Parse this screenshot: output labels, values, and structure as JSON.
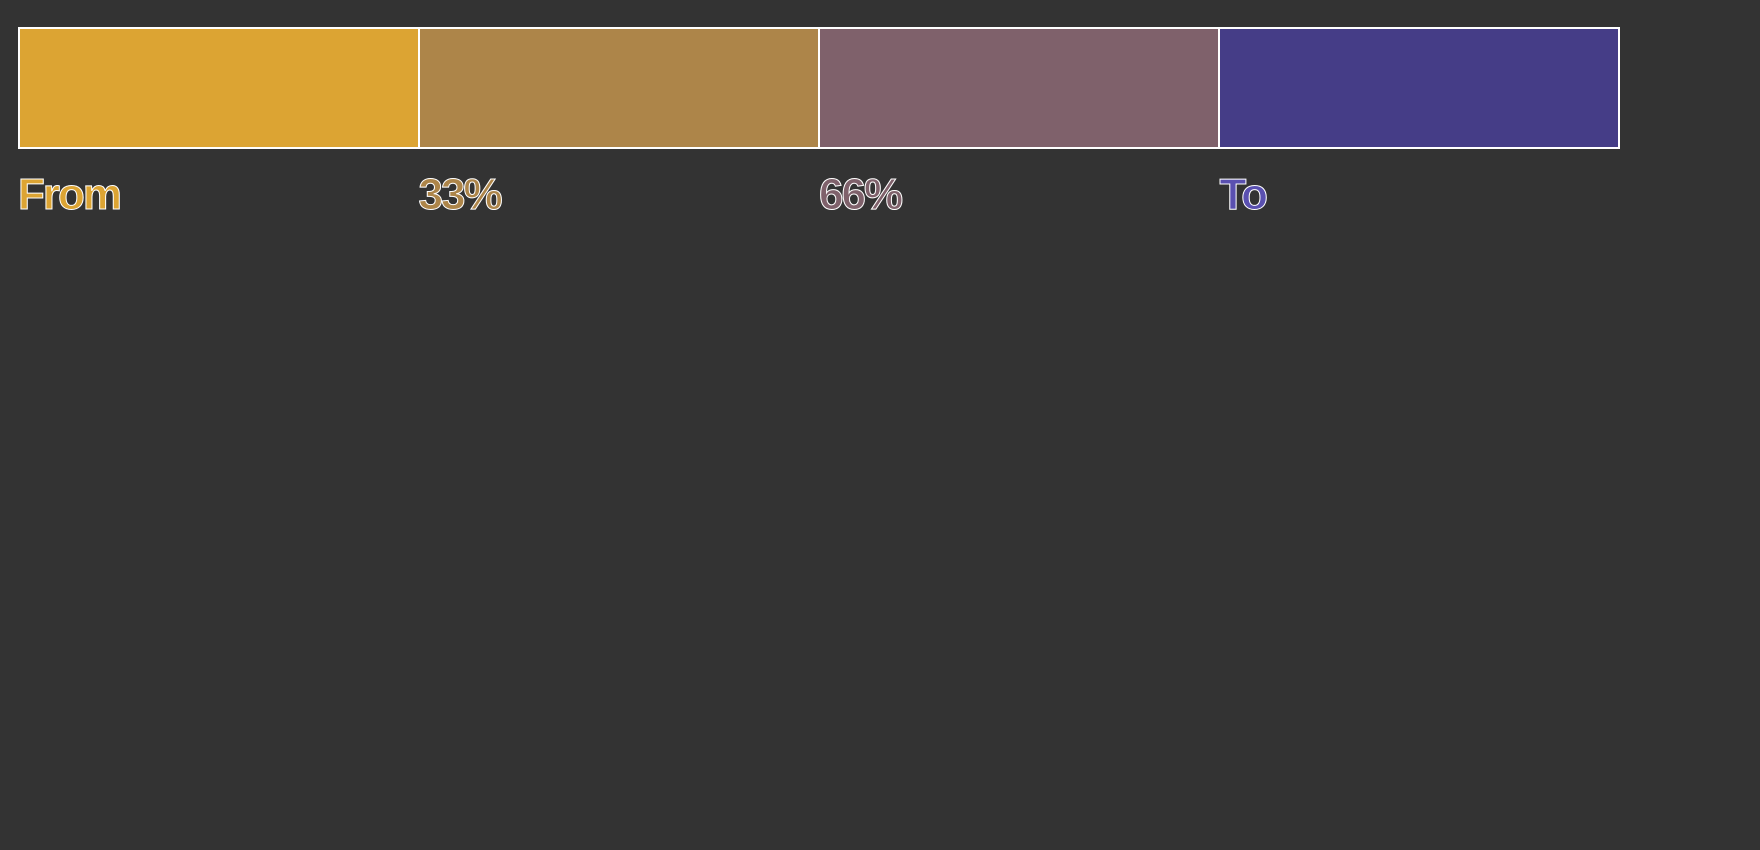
{
  "stops": [
    {
      "label": "From",
      "color": "#dca433",
      "text_color": "#dca433"
    },
    {
      "label": "33%",
      "color": "#ad8549",
      "text_color": "#ad8549"
    },
    {
      "label": "66%",
      "color": "#7f616b",
      "text_color": "#7f616b"
    },
    {
      "label": "To",
      "color": "#453d87",
      "text_color": "#5a50b0"
    }
  ]
}
